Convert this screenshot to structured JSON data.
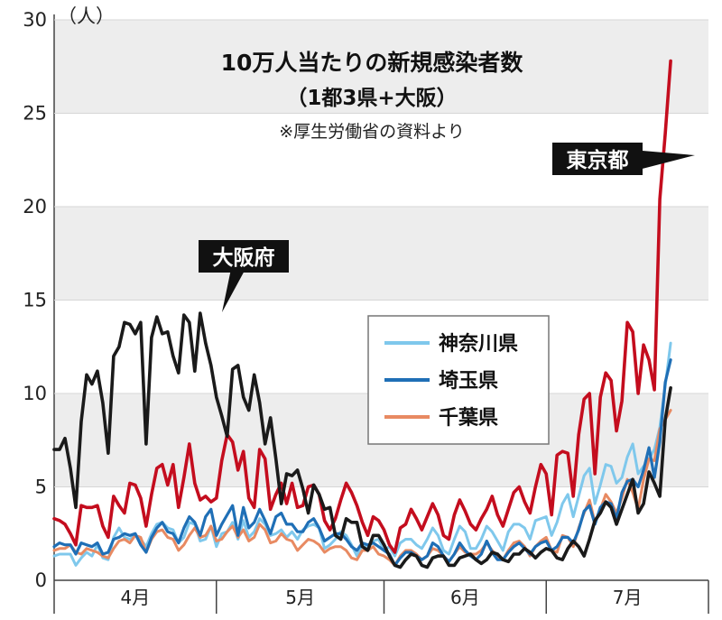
{
  "chart_data": {
    "type": "line",
    "title": "10万人当たりの新規感染者数",
    "subtitle": "（1都3県+大阪）",
    "source": "※厚生労働省の資料より",
    "y_unit_label": "（人）",
    "ylim": [
      0,
      30
    ],
    "y_ticks": [
      0,
      5,
      10,
      15,
      20,
      25,
      30
    ],
    "y_tick_labels": [
      "0",
      "5",
      "10",
      "15",
      "20",
      "25",
      "30"
    ],
    "x_range": [
      0,
      121
    ],
    "x_month_labels": [
      {
        "label": "4月",
        "start": 0,
        "end": 30
      },
      {
        "label": "5月",
        "start": 30,
        "end": 61
      },
      {
        "label": "6月",
        "start": 61,
        "end": 91
      },
      {
        "label": "7月",
        "start": 91,
        "end": 122
      }
    ],
    "grid_bands": true,
    "legend": {
      "placement": "center-right",
      "entries": [
        "神奈川県",
        "埼玉県",
        "千葉県"
      ]
    },
    "annotations": [
      {
        "text": "大阪府",
        "series": "大阪府"
      },
      {
        "text": "東京都",
        "series": "東京都"
      }
    ],
    "series": [
      {
        "name": "大阪府",
        "color": "#1a1a1a",
        "x": [
          0,
          1,
          2,
          3,
          4,
          5,
          6,
          7,
          8,
          9,
          10,
          11,
          12,
          13,
          14,
          15,
          16,
          17,
          18,
          19,
          20,
          21,
          22,
          23,
          24,
          25,
          26,
          27,
          28,
          29,
          30,
          31,
          32,
          33,
          34,
          35,
          36,
          37,
          38,
          39,
          40,
          41,
          42,
          43,
          44,
          45,
          46,
          47,
          48,
          49,
          50,
          51,
          52,
          53,
          54,
          55,
          56,
          57,
          58,
          59,
          60,
          61,
          62,
          63,
          64,
          65,
          66,
          67,
          68,
          69,
          70,
          71,
          72,
          73,
          74,
          75,
          76,
          77,
          78,
          79,
          80,
          81,
          82,
          83,
          84,
          85,
          86,
          87,
          88,
          89,
          90,
          91,
          92,
          93,
          94,
          95,
          96,
          97,
          98,
          99,
          100,
          101,
          102,
          103,
          104,
          105,
          106,
          107,
          108,
          109,
          110,
          111,
          112,
          113,
          114
        ],
        "values": [
          7,
          7,
          7.6,
          6,
          3.9,
          8.5,
          11,
          10.5,
          11.2,
          9.5,
          6.8,
          12,
          12.5,
          13.8,
          13.7,
          13.2,
          13.8,
          7.3,
          13,
          14.1,
          13.2,
          13.3,
          12,
          11.1,
          14.2,
          13.8,
          11.2,
          14.3,
          12.7,
          11.5,
          9.8,
          8.8,
          7.7,
          11.3,
          11.5,
          9.8,
          9.1,
          11,
          9.5,
          7.3,
          8.7,
          6.5,
          4.1,
          5.7,
          5.6,
          5.9,
          4.9,
          3.6,
          5.1,
          4.6,
          3.8,
          3.9,
          2.4,
          2.2,
          3.3,
          3.1,
          3.1,
          1.8,
          1.6,
          2.4,
          2.4,
          1.9,
          1.3,
          0.8,
          0.7,
          1.1,
          1.4,
          1.3,
          0.8,
          0.7,
          1.2,
          1.3,
          1.3,
          0.8,
          0.8,
          1.2,
          1.3,
          1.4,
          1.1,
          0.9,
          1.1,
          1.5,
          1.4,
          1.1,
          1,
          1.4,
          1.4,
          1.7,
          1.5,
          1.2,
          1.5,
          1.7,
          1.6,
          1.2,
          1.1,
          1.7,
          2.1,
          1.8,
          1.3,
          2.2,
          3.2,
          3.6,
          4.2,
          3.9,
          3,
          3.8,
          4.6,
          5.4,
          3.6,
          4.1,
          5.8,
          5.2,
          4.5,
          8.6,
          10.3
        ]
      },
      {
        "name": "東京都",
        "color": "#c40d1e",
        "x": [
          0,
          1,
          2,
          3,
          4,
          5,
          6,
          7,
          8,
          9,
          10,
          11,
          12,
          13,
          14,
          15,
          16,
          17,
          18,
          19,
          20,
          21,
          22,
          23,
          24,
          25,
          26,
          27,
          28,
          29,
          30,
          31,
          32,
          33,
          34,
          35,
          36,
          37,
          38,
          39,
          40,
          41,
          42,
          43,
          44,
          45,
          46,
          47,
          48,
          49,
          50,
          51,
          52,
          53,
          54,
          55,
          56,
          57,
          58,
          59,
          60,
          61,
          62,
          63,
          64,
          65,
          66,
          67,
          68,
          69,
          70,
          71,
          72,
          73,
          74,
          75,
          76,
          77,
          78,
          79,
          80,
          81,
          82,
          83,
          84,
          85,
          86,
          87,
          88,
          89,
          90,
          91,
          92,
          93,
          94,
          95,
          96,
          97,
          98,
          99,
          100,
          101,
          102,
          103,
          104,
          105,
          106,
          107,
          108,
          109,
          110,
          111,
          112,
          113,
          114
        ],
        "values": [
          3.3,
          3.2,
          3,
          2.5,
          1.9,
          4,
          3.9,
          3.9,
          4,
          2.9,
          2.3,
          4.5,
          4,
          3.6,
          5.2,
          5.1,
          4.4,
          2.9,
          4.6,
          6,
          6.2,
          5.1,
          6.2,
          3.9,
          5.5,
          7.3,
          5.2,
          4.3,
          4.5,
          4.2,
          4.4,
          6.4,
          7.8,
          7.4,
          5.9,
          6.9,
          4.4,
          3.9,
          7,
          6.5,
          3.8,
          4.6,
          5.2,
          4.1,
          5.2,
          3.9,
          4,
          5,
          5.1,
          4.6,
          3.2,
          2.7,
          3.3,
          4.3,
          5.2,
          4.7,
          4,
          3.1,
          2.4,
          3.4,
          3.2,
          2.7,
          1.9,
          1.5,
          2.8,
          3,
          3.8,
          3.3,
          2.7,
          3.4,
          4.1,
          3.5,
          2.4,
          2.2,
          3.5,
          4.3,
          3.7,
          3,
          2.7,
          3.3,
          3.8,
          4.5,
          3.5,
          2.9,
          3.8,
          4.7,
          5,
          4.2,
          3.6,
          5,
          6.2,
          5.7,
          3.5,
          6.7,
          6.9,
          6.8,
          4.5,
          7.8,
          9.7,
          10,
          5.7,
          9.8,
          11.1,
          10.7,
          8,
          9.6,
          13.8,
          13.3,
          10,
          12.6,
          11.8,
          10.2,
          20.4,
          23.9,
          27.8
        ]
      },
      {
        "name": "神奈川県",
        "color": "#7fc8ec",
        "x": [
          0,
          1,
          2,
          3,
          4,
          5,
          6,
          7,
          8,
          9,
          10,
          11,
          12,
          13,
          14,
          15,
          16,
          17,
          18,
          19,
          20,
          21,
          22,
          23,
          24,
          25,
          26,
          27,
          28,
          29,
          30,
          31,
          32,
          33,
          34,
          35,
          36,
          37,
          38,
          39,
          40,
          41,
          42,
          43,
          44,
          45,
          46,
          47,
          48,
          49,
          50,
          51,
          52,
          53,
          54,
          55,
          56,
          57,
          58,
          59,
          60,
          61,
          62,
          63,
          64,
          65,
          66,
          67,
          68,
          69,
          70,
          71,
          72,
          73,
          74,
          75,
          76,
          77,
          78,
          79,
          80,
          81,
          82,
          83,
          84,
          85,
          86,
          87,
          88,
          89,
          90,
          91,
          92,
          93,
          94,
          95,
          96,
          97,
          98,
          99,
          100,
          101,
          102,
          103,
          104,
          105,
          106,
          107,
          108,
          109,
          110,
          111,
          112,
          113,
          114
        ],
        "values": [
          1.3,
          1.4,
          1.4,
          1.4,
          0.8,
          1.2,
          1.5,
          1.3,
          1.9,
          1.2,
          1.1,
          2.3,
          2.8,
          2.3,
          2.2,
          2.4,
          2.2,
          1.8,
          2.5,
          3,
          3.1,
          2.8,
          2.7,
          2,
          2.3,
          3.1,
          3,
          2.1,
          2.2,
          2.9,
          1.8,
          2.5,
          2.6,
          3.1,
          2.2,
          3.2,
          2.3,
          2.6,
          3.3,
          3,
          2.4,
          2.5,
          2.7,
          2.3,
          2.6,
          2.2,
          2.7,
          2.9,
          3,
          2.8,
          1.7,
          1.9,
          2.2,
          2.6,
          2.4,
          1.9,
          1.3,
          1.9,
          1.7,
          2.1,
          2.2,
          1.6,
          1.8,
          1.3,
          2,
          2.2,
          2.2,
          1.9,
          1.7,
          2.2,
          2.8,
          2.4,
          1.6,
          1.4,
          2.2,
          2.9,
          2.6,
          1.7,
          1.7,
          2.2,
          2.9,
          2.6,
          2.1,
          1.6,
          2.6,
          3,
          3,
          2.8,
          2.2,
          3.2,
          3.3,
          3.4,
          2.4,
          3.1,
          4.1,
          4.6,
          3.4,
          4.5,
          5.6,
          6,
          4.1,
          5.1,
          6.2,
          6.1,
          5.2,
          5.5,
          6.6,
          7.3,
          5.7,
          6.1,
          6.5,
          7,
          8.2,
          10.4,
          12.7
        ]
      },
      {
        "name": "埼玉県",
        "color": "#1f6fb6",
        "x": [
          0,
          1,
          2,
          3,
          4,
          5,
          6,
          7,
          8,
          9,
          10,
          11,
          12,
          13,
          14,
          15,
          16,
          17,
          18,
          19,
          20,
          21,
          22,
          23,
          24,
          25,
          26,
          27,
          28,
          29,
          30,
          31,
          32,
          33,
          34,
          35,
          36,
          37,
          38,
          39,
          40,
          41,
          42,
          43,
          44,
          45,
          46,
          47,
          48,
          49,
          50,
          51,
          52,
          53,
          54,
          55,
          56,
          57,
          58,
          59,
          60,
          61,
          62,
          63,
          64,
          65,
          66,
          67,
          68,
          69,
          70,
          71,
          72,
          73,
          74,
          75,
          76,
          77,
          78,
          79,
          80,
          81,
          82,
          83,
          84,
          85,
          86,
          87,
          88,
          89,
          90,
          91,
          92,
          93,
          94,
          95,
          96,
          97,
          98,
          99,
          100,
          101,
          102,
          103,
          104,
          105,
          106,
          107,
          108,
          109,
          110,
          111,
          112,
          113,
          114
        ],
        "values": [
          1.8,
          2,
          1.9,
          1.9,
          1.4,
          2,
          1.9,
          1.8,
          2,
          1.4,
          1.5,
          2.2,
          2.3,
          2.5,
          2.4,
          2.5,
          1.9,
          1.5,
          2.3,
          2.8,
          3.1,
          2.6,
          2.5,
          2,
          2.8,
          3.4,
          3.1,
          2.4,
          3.4,
          3.8,
          2.4,
          3,
          3.5,
          4,
          2.4,
          3.9,
          2.8,
          3.1,
          3.8,
          3.2,
          2.5,
          3.4,
          3.6,
          3,
          3,
          2.6,
          2.6,
          3.1,
          3.3,
          2.8,
          2.1,
          2.3,
          2.5,
          2.5,
          2.2,
          1.8,
          1.6,
          2,
          1.9,
          2,
          1.8,
          1.6,
          1.4,
          0.8,
          1.2,
          1.5,
          1.5,
          1.3,
          1.1,
          1.3,
          2,
          1.8,
          1.3,
          1,
          1.4,
          2,
          1.6,
          1.3,
          1.1,
          1.4,
          2.1,
          1.5,
          1.1,
          1.1,
          1.5,
          1.8,
          2,
          1.7,
          1.4,
          1.8,
          2,
          2.1,
          1.6,
          1.8,
          2.3,
          2.3,
          2,
          2.7,
          3.7,
          4,
          3,
          3.9,
          4.2,
          4.1,
          3.3,
          4.7,
          5.3,
          5.4,
          5,
          5.9,
          7.1,
          5.5,
          7.4,
          10.6,
          11.8
        ]
      },
      {
        "name": "千葉県",
        "color": "#e88a62",
        "x": [
          0,
          1,
          2,
          3,
          4,
          5,
          6,
          7,
          8,
          9,
          10,
          11,
          12,
          13,
          14,
          15,
          16,
          17,
          18,
          19,
          20,
          21,
          22,
          23,
          24,
          25,
          26,
          27,
          28,
          29,
          30,
          31,
          32,
          33,
          34,
          35,
          36,
          37,
          38,
          39,
          40,
          41,
          42,
          43,
          44,
          45,
          46,
          47,
          48,
          49,
          50,
          51,
          52,
          53,
          54,
          55,
          56,
          57,
          58,
          59,
          60,
          61,
          62,
          63,
          64,
          65,
          66,
          67,
          68,
          69,
          70,
          71,
          72,
          73,
          74,
          75,
          76,
          77,
          78,
          79,
          80,
          81,
          82,
          83,
          84,
          85,
          86,
          87,
          88,
          89,
          90,
          91,
          92,
          93,
          94,
          95,
          96,
          97,
          98,
          99,
          100,
          101,
          102,
          103,
          104,
          105,
          106,
          107,
          108,
          109,
          110,
          111,
          112,
          113,
          114
        ],
        "values": [
          1.6,
          1.7,
          1.7,
          1.9,
          1.5,
          1.4,
          1.7,
          1.6,
          1.5,
          1.3,
          1.2,
          1.7,
          2.1,
          2.2,
          2,
          2.4,
          2.3,
          1.5,
          2.2,
          2.6,
          2.7,
          2.3,
          2.2,
          1.6,
          1.9,
          2.4,
          2.8,
          2.3,
          2.4,
          2.9,
          2.1,
          2.2,
          2.6,
          2.9,
          2.3,
          2.7,
          2.1,
          2.3,
          3,
          2.7,
          2,
          2.1,
          2.5,
          2.2,
          2.1,
          1.6,
          1.9,
          2.2,
          2.1,
          1.9,
          1.5,
          1.7,
          1.8,
          1.8,
          1.6,
          1.2,
          1.1,
          1.6,
          1.6,
          1.8,
          1.4,
          1.3,
          1.1,
          0.8,
          1.3,
          1.6,
          1.6,
          1.4,
          1.1,
          1.3,
          1.7,
          1.6,
          1.3,
          1,
          1.4,
          1.8,
          1.5,
          1.4,
          1.4,
          1.6,
          2,
          1.6,
          1.3,
          1.1,
          1.6,
          2,
          2.1,
          1.8,
          1.3,
          1.8,
          2.1,
          2.3,
          1.6,
          1.5,
          2.4,
          2.3,
          1.8,
          2.8,
          3.6,
          4.3,
          3.1,
          3.8,
          4.6,
          4.2,
          3.6,
          4.4,
          5.4,
          4.7,
          3.8,
          5.4,
          6.5,
          6.4,
          8.1,
          8.6,
          9.1
        ]
      }
    ]
  }
}
